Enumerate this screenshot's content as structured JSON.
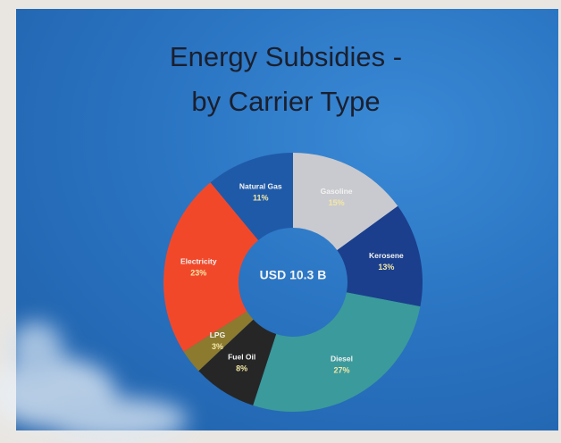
{
  "chart_data": {
    "type": "donut",
    "title": [
      "Energy Subsidies -",
      "by Carrier Type"
    ],
    "center_label": "USD 10.3 B",
    "categories": [
      "Gasoline",
      "Kerosene",
      "Diesel",
      "Fuel Oil",
      "LPG",
      "Electricity",
      "Natural Gas"
    ],
    "values": [
      15,
      13,
      27,
      8,
      3,
      23,
      11
    ],
    "value_labels": [
      "15%",
      "13%",
      "27%",
      "8%",
      "3%",
      "23%",
      "11%"
    ],
    "colors": [
      "#c9cacf",
      "#1b3f8c",
      "#3b9a9c",
      "#262626",
      "#8c7a2e",
      "#f2482a",
      "#1f5aa8"
    ]
  }
}
